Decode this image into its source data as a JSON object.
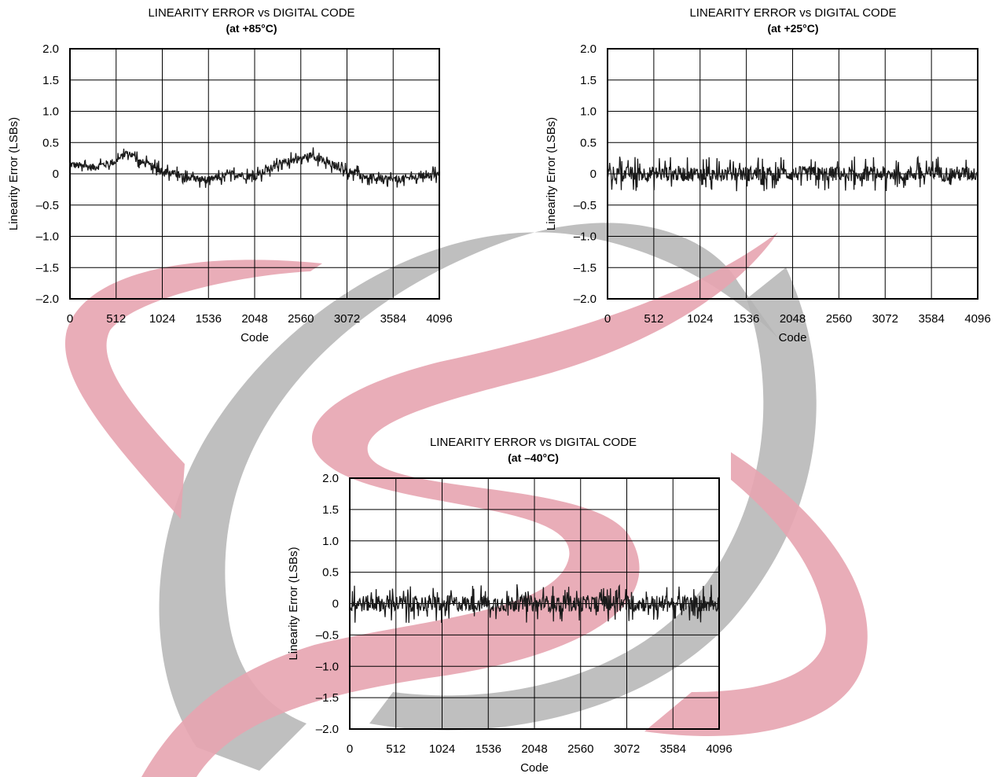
{
  "watermark": {
    "colors": {
      "red": "#e7a4b0",
      "gray": "#b4b4b4"
    }
  },
  "chart_data": [
    {
      "type": "line",
      "title": "LINEARITY ERROR vs DIGITAL CODE",
      "subtitle": "(at +85°C)",
      "xlabel": "Code",
      "ylabel": "Linearity Error (LSBs)",
      "xlim": [
        0,
        4096
      ],
      "ylim": [
        -2.0,
        2.0
      ],
      "xticks": [
        "0",
        "512",
        "1024",
        "1536",
        "2048",
        "2560",
        "3072",
        "3584",
        "4096"
      ],
      "yticks": [
        "2.0",
        "1.5",
        "1.0",
        "0.5",
        "0",
        "–0.5",
        "–1.0",
        "–1.5",
        "–2.0"
      ],
      "grid": true,
      "series": [
        {
          "x": [
            0,
            256,
            512,
            640,
            768,
            1024,
            1280,
            1536,
            1792,
            2048,
            2304,
            2560,
            2688,
            2816,
            3072,
            3328,
            3584,
            3840,
            4096
          ],
          "values": [
            0.15,
            0.1,
            0.2,
            0.35,
            0.2,
            0.05,
            -0.05,
            -0.1,
            0.0,
            -0.05,
            0.15,
            0.25,
            0.3,
            0.2,
            0.05,
            -0.05,
            -0.1,
            -0.05,
            0.0
          ],
          "noise_amplitude": 0.1,
          "color": "#1a1a1a"
        }
      ]
    },
    {
      "type": "line",
      "title": "LINEARITY ERROR vs DIGITAL CODE",
      "subtitle": "(at +25°C)",
      "xlabel": "Code",
      "ylabel": "Linearity Error (LSBs)",
      "xlim": [
        0,
        4096
      ],
      "ylim": [
        -2.0,
        2.0
      ],
      "xticks": [
        "0",
        "512",
        "1024",
        "1536",
        "2048",
        "2560",
        "3072",
        "3584",
        "4096"
      ],
      "yticks": [
        "2.0",
        "1.5",
        "1.0",
        "0.5",
        "0",
        "–0.5",
        "–1.0",
        "–1.5",
        "–2.0"
      ],
      "grid": true,
      "series": [
        {
          "x": [
            0,
            4096
          ],
          "values": [
            0.0,
            0.0
          ],
          "noise_amplitude": 0.2,
          "color": "#1a1a1a"
        }
      ]
    },
    {
      "type": "line",
      "title": "LINEARITY ERROR vs DIGITAL CODE",
      "subtitle": "(at –40°C)",
      "xlabel": "Code",
      "ylabel": "Linearity Error (LSBs)",
      "xlim": [
        0,
        4096
      ],
      "ylim": [
        -2.0,
        2.0
      ],
      "xticks": [
        "0",
        "512",
        "1024",
        "1536",
        "2048",
        "2560",
        "3072",
        "3584",
        "4096"
      ],
      "yticks": [
        "2.0",
        "1.5",
        "1.0",
        "0.5",
        "0",
        "–0.5",
        "–1.0",
        "–1.5",
        "–2.0"
      ],
      "grid": true,
      "series": [
        {
          "x": [
            0,
            4096
          ],
          "values": [
            0.0,
            0.0
          ],
          "noise_amplitude": 0.22,
          "color": "#1a1a1a"
        }
      ]
    }
  ]
}
